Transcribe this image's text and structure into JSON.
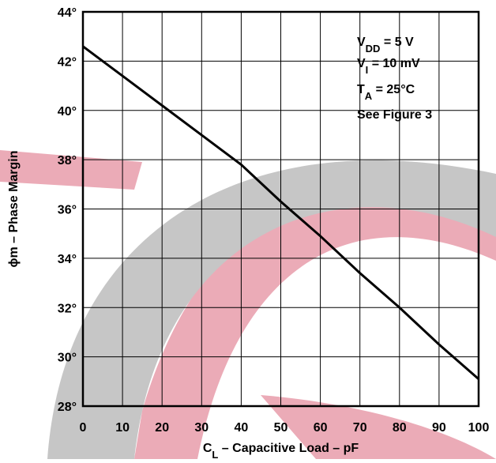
{
  "chart_data": {
    "type": "line",
    "x_label": [
      {
        "text": "C"
      },
      {
        "text": "L",
        "sub": true
      },
      {
        "text": " – Capacitive Load – pF"
      }
    ],
    "y_label": [
      {
        "text": "ϕm – Phase Margin"
      }
    ],
    "annotations": [
      [
        {
          "text": "V"
        },
        {
          "text": "DD",
          "sub": true
        },
        {
          "text": " = 5 V"
        }
      ],
      [
        {
          "text": "V"
        },
        {
          "text": "I",
          "sub": true
        },
        {
          "text": " = 10 mV"
        }
      ],
      [
        {
          "text": "T"
        },
        {
          "text": "A",
          "sub": true
        },
        {
          "text": " = 25°C"
        }
      ],
      [
        {
          "text": "See Figure 3"
        }
      ]
    ],
    "x": [
      0,
      10,
      20,
      30,
      35,
      40,
      50,
      60,
      70,
      80,
      90,
      100
    ],
    "series": [
      {
        "color": "#000000",
        "values": [
          42.6,
          41.4,
          40.2,
          39.0,
          38.4,
          37.8,
          36.3,
          34.9,
          33.4,
          32.0,
          30.5,
          29.1
        ]
      }
    ],
    "xlim": [
      0,
      100
    ],
    "xticks": [
      0,
      10,
      20,
      30,
      40,
      50,
      60,
      70,
      80,
      90,
      100
    ],
    "ylim": [
      28,
      44
    ],
    "yticks": [
      {
        "value": 28,
        "label": "28°"
      },
      {
        "value": 30,
        "label": "30°"
      },
      {
        "value": 32,
        "label": "32°"
      },
      {
        "value": 34,
        "label": "34°"
      },
      {
        "value": 36,
        "label": "36°"
      },
      {
        "value": 38,
        "label": "38°"
      },
      {
        "value": 40,
        "label": "40°"
      },
      {
        "value": 42,
        "label": "42°"
      },
      {
        "value": 44,
        "label": "44°"
      }
    ],
    "grid": true
  }
}
